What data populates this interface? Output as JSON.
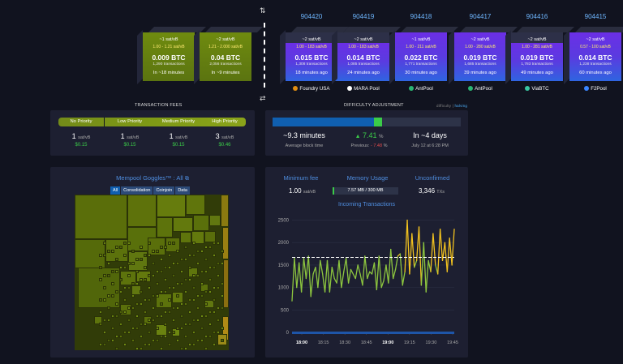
{
  "mempool_blocks": [
    {
      "fee": "~1 sat/vB",
      "range": "1.00 - 1.21 sat/vB",
      "btc": "0.009 BTC",
      "tx": "1,290 transactions",
      "time": "In ~18 minutes"
    },
    {
      "fee": "~2 sat/vB",
      "range": "1.21 - 2.000 sat/vB",
      "btc": "0.04 BTC",
      "tx": "2,056 transactions",
      "time": "In ~9 minutes"
    }
  ],
  "blocks": [
    {
      "height": "904420",
      "fee": "~2 sat/vB",
      "range": "1.00 - 183 sat/vB",
      "btc": "0.015 BTC",
      "tx": "1,308 transactions",
      "time": "18 minutes ago",
      "pool": "Foundry USA",
      "pool_color": "#e08e12"
    },
    {
      "height": "904419",
      "fee": "~2 sat/vB",
      "range": "1.00 - 183 sat/vB",
      "btc": "0.014 BTC",
      "tx": "1,085 transactions",
      "time": "24 minutes ago",
      "pool": "MARA Pool",
      "pool_color": "#ffffff"
    },
    {
      "height": "904418",
      "fee": "~1 sat/vB",
      "range": "1.00 - 211 sat/vB",
      "btc": "0.022 BTC",
      "tx": "1,771 transactions",
      "time": "30 minutes ago",
      "pool": "AntPool",
      "pool_color": "#2bb673"
    },
    {
      "height": "904417",
      "fee": "~2 sat/vB",
      "range": "1.00 - 280 sat/vB",
      "btc": "0.019 BTC",
      "tx": "1,685 transactions",
      "time": "39 minutes ago",
      "pool": "AntPool",
      "pool_color": "#2bb673"
    },
    {
      "height": "904416",
      "fee": "~2 sat/vB",
      "range": "1.00 - 281 sat/vB",
      "btc": "0.019 BTC",
      "tx": "1,783 transactions",
      "time": "49 minutes ago",
      "pool": "ViaBTC",
      "pool_color": "#39c6a1"
    },
    {
      "height": "904415",
      "fee": "~2 sat/vB",
      "range": "0.57 - 100 sat/vB",
      "btc": "0.014 BTC",
      "tx": "1,238 transactions",
      "time": "60 minutes ago",
      "pool": "F2Pool",
      "pool_color": "#3a86ff"
    }
  ],
  "fees": {
    "title": "TRANSACTION FEES",
    "tiers": [
      {
        "label": "No Priority",
        "value": "1",
        "unit": "sat/vB",
        "usd": "$0.15"
      },
      {
        "label": "Low Priority",
        "value": "1",
        "unit": "sat/vB",
        "usd": "$0.15"
      },
      {
        "label": "Medium Priority",
        "value": "1",
        "unit": "sat/vB",
        "usd": "$0.15"
      },
      {
        "label": "High Priority",
        "value": "3",
        "unit": "sat/vB",
        "usd": "$0.46"
      }
    ]
  },
  "difficulty": {
    "title": "DIFFICULTY ADJUSTMENT",
    "toggle_label": "difficulty",
    "toggle_link": "halving",
    "progress": 0.58,
    "block_time": "~9.3 minutes",
    "block_time_label": "Average block time",
    "change": "7.41",
    "change_unit": "%",
    "previous_label": "Previous:",
    "previous": "- 7.48",
    "previous_unit": "%",
    "eta": "In ~4 days",
    "eta_date": "July 12 at 6:28 PM"
  },
  "goggles": {
    "title": "Mempool Goggles™ : All",
    "filters": [
      "All",
      "Consolidation",
      "Coinjoin",
      "Data"
    ]
  },
  "stats": {
    "min_fee_label": "Minimum fee",
    "min_fee": "1.00",
    "min_fee_unit": "sat/vB",
    "memory_label": "Memory Usage",
    "memory": "7.57 MB / 300 MB",
    "memory_fraction": 0.025,
    "unconfirmed_label": "Unconfirmed",
    "unconfirmed": "3,346",
    "unconfirmed_unit": "TXs"
  },
  "chart_data": {
    "type": "line",
    "title": "Incoming Transactions",
    "x_ticks": [
      "18:00",
      "18:15",
      "18:30",
      "18:45",
      "19:00",
      "19:15",
      "19:30",
      "19:45"
    ],
    "y_ticks": [
      0,
      500,
      1000,
      1500,
      2000,
      2500
    ],
    "ylim": [
      0,
      2600
    ],
    "threshold": 1670,
    "values": [
      700,
      1650,
      1000,
      1550,
      900,
      1650,
      1200,
      1700,
      800,
      1300,
      1450,
      1000,
      1600,
      1300,
      900,
      1600,
      900,
      1450,
      1200,
      1100,
      1600,
      1000,
      1350,
      1650,
      1100,
      1400,
      1300,
      1200,
      1500,
      1300,
      1050,
      1700,
      1200,
      1350,
      1300,
      1550,
      950,
      1700,
      1000,
      1150,
      1500,
      1100,
      1850,
      1200,
      1400,
      1700,
      1750,
      1050,
      1350,
      2500,
      1300,
      2200,
      1450,
      1600,
      2350,
      1050,
      2000,
      900,
      1600,
      1350,
      2200,
      1500,
      1300,
      2300,
      1600,
      2000,
      1350,
      2100,
      1500,
      2300
    ]
  }
}
